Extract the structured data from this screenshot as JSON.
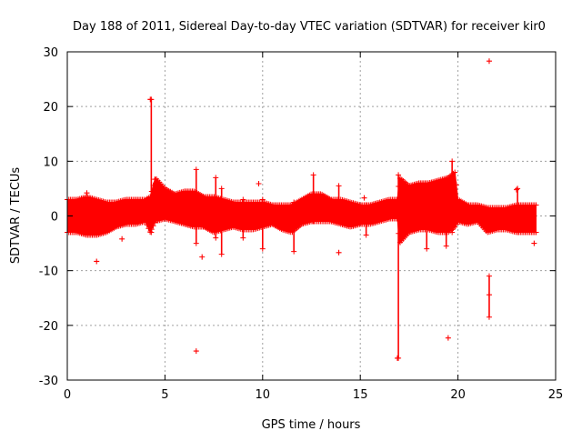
{
  "chart_data": {
    "type": "scatter",
    "title": "Day 188 of 2011, Sidereal Day-to-day VTEC variation (SDTVAR) for receiver kir0",
    "xlabel": "GPS time / hours",
    "ylabel": "SDTVAR / TECUs",
    "xlim": [
      0,
      25
    ],
    "ylim": [
      -30,
      30
    ],
    "xticks": [
      0,
      5,
      10,
      15,
      20,
      25
    ],
    "yticks": [
      -30,
      -20,
      -10,
      0,
      10,
      20,
      30
    ],
    "grid": true,
    "marker": "plus",
    "color": "#ff0000",
    "band": {
      "series_name": "SDTVAR",
      "x": [
        0.0,
        0.5,
        1.0,
        1.5,
        2.0,
        2.5,
        3.0,
        3.5,
        4.0,
        4.25,
        4.5,
        5.0,
        5.5,
        6.0,
        6.5,
        7.0,
        7.5,
        8.0,
        8.5,
        9.0,
        9.5,
        10.0,
        10.5,
        11.0,
        11.5,
        12.0,
        12.5,
        13.0,
        13.5,
        14.0,
        14.5,
        15.0,
        15.5,
        16.0,
        16.5,
        16.9,
        17.0,
        17.5,
        18.0,
        18.5,
        19.0,
        19.5,
        19.85,
        20.0,
        20.5,
        21.0,
        21.5,
        22.0,
        22.5,
        23.0,
        23.5,
        24.0
      ],
      "upper": [
        3.0,
        3.0,
        3.5,
        3.0,
        2.5,
        2.5,
        3.0,
        3.0,
        3.0,
        3.5,
        7.0,
        5.0,
        4.0,
        4.5,
        4.5,
        3.5,
        3.5,
        3.0,
        2.5,
        2.5,
        2.5,
        2.5,
        2.0,
        2.0,
        2.0,
        3.0,
        4.0,
        4.0,
        3.0,
        3.0,
        2.5,
        2.0,
        2.0,
        2.5,
        3.0,
        3.0,
        7.0,
        5.5,
        6.0,
        6.0,
        6.5,
        7.0,
        8.0,
        3.0,
        2.0,
        2.0,
        1.5,
        1.5,
        1.5,
        2.0,
        2.0,
        2.0
      ],
      "lower": [
        -3.0,
        -3.0,
        -3.5,
        -3.5,
        -3.0,
        -2.0,
        -1.5,
        -1.5,
        -1.0,
        -3.0,
        -1.0,
        -0.5,
        -1.0,
        -1.5,
        -2.0,
        -2.0,
        -3.0,
        -2.5,
        -2.0,
        -2.5,
        -2.5,
        -2.0,
        -1.5,
        -2.5,
        -3.0,
        -1.5,
        -1.0,
        -1.0,
        -1.0,
        -1.5,
        -2.0,
        -1.5,
        -1.5,
        -1.0,
        -0.5,
        -0.5,
        -5.0,
        -3.0,
        -2.5,
        -2.5,
        -3.0,
        -3.0,
        -2.0,
        -1.0,
        -1.5,
        -1.0,
        -3.0,
        -2.5,
        -2.5,
        -3.0,
        -3.0,
        -3.0
      ]
    },
    "spikes": [
      {
        "x": 4.3,
        "y_min": -3,
        "y_max": 21.3
      },
      {
        "x": 6.6,
        "y_min": -5,
        "y_max": 8.5
      },
      {
        "x": 7.6,
        "y_min": -4,
        "y_max": 7
      },
      {
        "x": 7.9,
        "y_min": -7,
        "y_max": 5
      },
      {
        "x": 9.0,
        "y_min": -4,
        "y_max": 3
      },
      {
        "x": 10.0,
        "y_min": -6,
        "y_max": 3
      },
      {
        "x": 11.6,
        "y_min": -6.5,
        "y_max": 2.5
      },
      {
        "x": 12.6,
        "y_min": -1,
        "y_max": 7.5
      },
      {
        "x": 13.9,
        "y_min": -1,
        "y_max": 5.5
      },
      {
        "x": 15.3,
        "y_min": -3.5,
        "y_max": 2
      },
      {
        "x": 16.95,
        "y_min": -26,
        "y_max": 7.5
      },
      {
        "x": 18.4,
        "y_min": -6,
        "y_max": 4
      },
      {
        "x": 19.4,
        "y_min": -5.5,
        "y_max": 6
      },
      {
        "x": 19.7,
        "y_min": -3,
        "y_max": 10
      },
      {
        "x": 21.6,
        "y_min": -18.5,
        "y_max": -11
      },
      {
        "x": 23.05,
        "y_min": -3,
        "y_max": 5
      }
    ],
    "outliers": [
      {
        "x": 1.0,
        "y": 4.2
      },
      {
        "x": 1.5,
        "y": -8.3
      },
      {
        "x": 2.8,
        "y": -4.2
      },
      {
        "x": 4.25,
        "y": 21.3
      },
      {
        "x": 6.6,
        "y": -24.7
      },
      {
        "x": 6.9,
        "y": -7.5
      },
      {
        "x": 9.8,
        "y": 5.9
      },
      {
        "x": 13.9,
        "y": -6.7
      },
      {
        "x": 15.2,
        "y": 3.3
      },
      {
        "x": 16.9,
        "y": -26.0
      },
      {
        "x": 19.5,
        "y": -22.3
      },
      {
        "x": 21.6,
        "y": 28.3
      },
      {
        "x": 21.6,
        "y": -14.4
      },
      {
        "x": 23.0,
        "y": 4.8
      },
      {
        "x": 23.9,
        "y": -5.0
      }
    ]
  }
}
